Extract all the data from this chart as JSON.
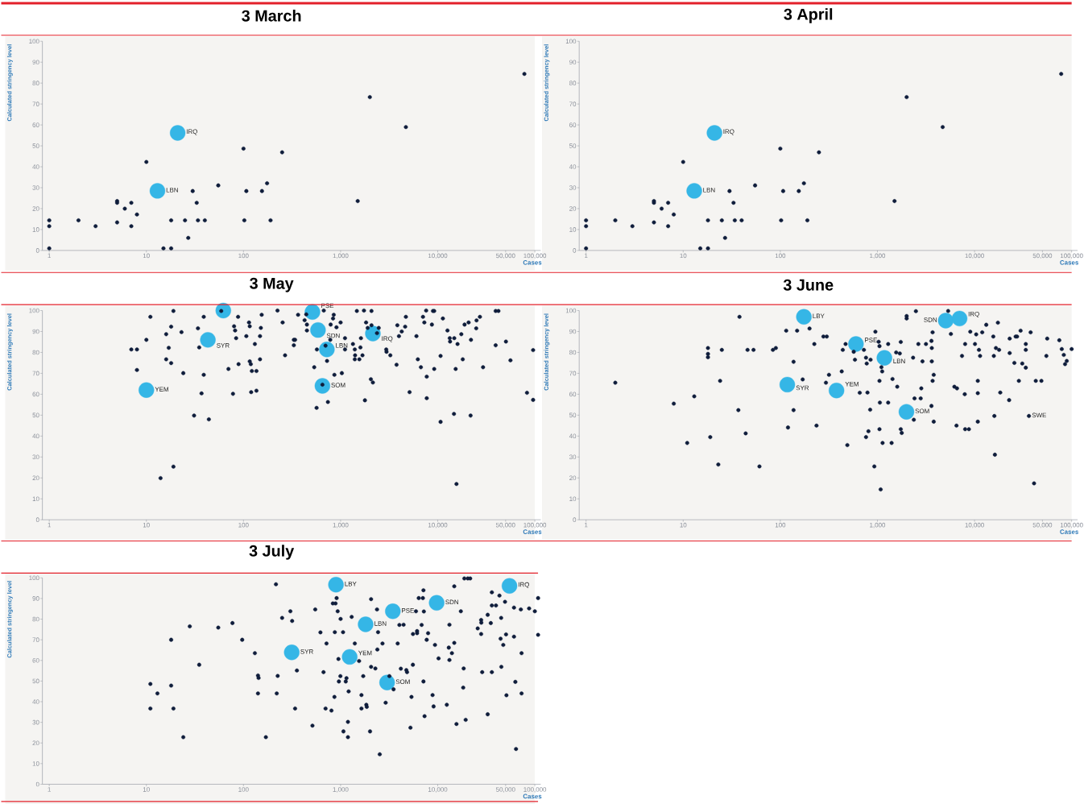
{
  "chart_data": [
    {
      "type": "scatter",
      "title": "3 March",
      "xlabel": "Cases",
      "ylabel": "Calculated stringency level",
      "log": "x",
      "marker": "circle",
      "xlim": [
        0.85,
        115000
      ],
      "ylim": [
        0,
        100
      ],
      "xticks": [
        1,
        10,
        100,
        {
          "value": 1000,
          "label": "1,000"
        },
        {
          "value": 10000,
          "label": "10,000"
        },
        {
          "value": 50000,
          "label": "50,000"
        },
        {
          "value": 100000,
          "label": "100,000"
        }
      ],
      "yticks": [
        0,
        10,
        20,
        30,
        40,
        50,
        60,
        70,
        80,
        90,
        100
      ],
      "series": [
        {
          "color": "#35b6e6",
          "x": [
            21,
            13
          ],
          "values": [
            56.2,
            28.5
          ]
        },
        {
          "color": "#0f1d3b",
          "x": [
            1,
            1,
            1,
            2,
            3,
            5,
            5,
            5,
            6,
            7,
            7,
            8,
            10,
            15,
            18,
            18,
            25,
            27,
            30,
            33,
            34,
            40,
            55,
            100,
            102,
            107,
            155,
            175,
            190,
            250,
            1500,
            2000,
            4700,
            78000
          ],
          "values": [
            14.4,
            11.6,
            1,
            14.4,
            11.6,
            23.6,
            22.8,
            13.4,
            20,
            22.8,
            11.6,
            17.2,
            42.3,
            1,
            1,
            14.4,
            14.4,
            6,
            28.4,
            22.8,
            14.4,
            14.4,
            31.1,
            48.7,
            14.4,
            28.4,
            28.4,
            32.1,
            14.4,
            46.9,
            23.6,
            73.3,
            59,
            84.4
          ]
        }
      ],
      "annotations": [
        {
          "text": "IRQ",
          "x": 21,
          "y": 56.2
        },
        {
          "text": "LBN",
          "x": 13,
          "y": 28.5
        }
      ]
    },
    {
      "type": "scatter",
      "title": "3 April",
      "xlabel": "Cases",
      "ylabel": "Calculated stringency level",
      "log": "x",
      "marker": "circle",
      "xlim": [
        0.85,
        115000
      ],
      "ylim": [
        0,
        100
      ],
      "xticks": [
        1,
        10,
        100,
        {
          "value": 1000,
          "label": "1,000"
        },
        {
          "value": 10000,
          "label": "10,000"
        },
        {
          "value": 50000,
          "label": "50,000"
        },
        {
          "value": 100000,
          "label": "100,000"
        }
      ],
      "yticks": [
        0,
        10,
        20,
        30,
        40,
        50,
        60,
        70,
        80,
        90,
        100
      ],
      "series": [
        {
          "color": "#35b6e6",
          "x": [
            21,
            13
          ],
          "values": [
            56.2,
            28.5
          ]
        },
        {
          "color": "#0f1d3b",
          "x": [
            1,
            1,
            1,
            2,
            3,
            5,
            5,
            5,
            6,
            7,
            7,
            8,
            10,
            15,
            18,
            18,
            25,
            27,
            30,
            33,
            34,
            40,
            55,
            100,
            102,
            107,
            155,
            175,
            190,
            250,
            1500,
            2000,
            4700,
            78000
          ],
          "values": [
            14.4,
            11.6,
            1,
            14.4,
            11.6,
            23.6,
            22.8,
            13.4,
            20,
            22.8,
            11.6,
            17.2,
            42.3,
            1,
            1,
            14.4,
            14.4,
            6,
            28.4,
            22.8,
            14.4,
            14.4,
            31.1,
            48.7,
            14.4,
            28.4,
            28.4,
            32.1,
            14.4,
            46.9,
            23.6,
            73.3,
            59,
            84.4
          ]
        }
      ],
      "annotations": [
        {
          "text": "IRQ",
          "x": 21,
          "y": 56.2
        },
        {
          "text": "LBN",
          "x": 13,
          "y": 28.5
        }
      ]
    },
    {
      "type": "scatter",
      "title": "3 May",
      "xlabel": "Cases",
      "ylabel": "Calculated stringency level",
      "log": "x",
      "marker": "circle",
      "xlim": [
        0.85,
        115000
      ],
      "ylim": [
        0,
        100
      ],
      "xticks": [
        1,
        10,
        100,
        {
          "value": 1000,
          "label": "1,000"
        },
        {
          "value": 10000,
          "label": "10,000"
        },
        {
          "value": 50000,
          "label": "50,000"
        },
        {
          "value": 100000,
          "label": "100,000"
        }
      ],
      "yticks": [
        0,
        10,
        20,
        30,
        40,
        50,
        60,
        70,
        80,
        90,
        100
      ],
      "series": [
        {
          "color": "#35b6e6",
          "x": [
            10,
            43,
            62,
            513,
            585,
            722,
            650,
            2150
          ],
          "values": [
            62,
            86,
            100,
            99.3,
            90.7,
            81.4,
            64,
            89
          ]
        },
        {
          "color": "#0f1d3b",
          "x": [
            7,
            8,
            8,
            10,
            11,
            14,
            16,
            16,
            17,
            18,
            18,
            19,
            19,
            23,
            24,
            31,
            34,
            35,
            37,
            39,
            39,
            44,
            59,
            70,
            78,
            80,
            82,
            84,
            88,
            89,
            107,
            114,
            116,
            116,
            119,
            120,
            122,
            131,
            136,
            136,
            148,
            148,
            151,
            154,
            224,
            253,
            268,
            330,
            330,
            340,
            365,
            426,
            443,
            450,
            450,
            535,
            566,
            570,
            671,
            650,
            700,
            725,
            740,
            783,
            790,
            836,
            850,
            863,
            907,
            1000,
            1030,
            1110,
            1110,
            1340,
            1400,
            1400,
            1410,
            1470,
            1560,
            1600,
            1620,
            1680,
            1740,
            1780,
            1830,
            1900,
            2050,
            2080,
            2080,
            2150,
            2370,
            2470,
            2950,
            2970,
            3250,
            3770,
            3840,
            3990,
            4260,
            4620,
            4700,
            5130,
            6040,
            6240,
            6710,
            7050,
            7280,
            7600,
            7710,
            7710,
            8710,
            8930,
            9200,
            9200,
            10700,
            10700,
            11300,
            12600,
            13300,
            13400,
            14700,
            14800,
            15300,
            15600,
            16000,
            17500,
            18100,
            18900,
            20800,
            21800,
            22000,
            24900,
            25100,
            27200,
            29300,
            39500,
            39500,
            42200,
            50400,
            56100,
            83000,
            96000,
            96000
          ],
          "values": [
            81.4,
            81.4,
            71.6,
            86,
            97,
            19.9,
            88.7,
            76.7,
            82.2,
            92.3,
            74.9,
            99.8,
            25.4,
            89.7,
            70.1,
            49.8,
            91.5,
            82.4,
            60.4,
            69.3,
            97,
            48,
            99.8,
            72.1,
            60.2,
            92.5,
            90.5,
            86.8,
            97,
            74.4,
            87.8,
            94.3,
            75.7,
            92.5,
            74.4,
            61,
            71.1,
            84,
            71.1,
            61.7,
            87.8,
            76.7,
            91.7,
            98,
            100,
            94.3,
            78.6,
            86,
            83.4,
            86,
            98,
            95.4,
            98.2,
            93.3,
            90.5,
            72.9,
            53.5,
            81.4,
            100,
            64.6,
            83.2,
            75.9,
            56.3,
            86,
            93.3,
            96.2,
            98,
            69.3,
            92,
            94.3,
            70.1,
            86.8,
            81.4,
            84,
            81.4,
            76.7,
            78.6,
            99.8,
            76.7,
            82.4,
            86.8,
            78.6,
            100,
            57.1,
            94.3,
            91.7,
            67.2,
            99.8,
            93,
            65.6,
            89.2,
            91.7,
            81.4,
            80.3,
            78.6,
            74.1,
            93,
            87.8,
            90,
            92.3,
            97,
            61,
            87.8,
            76.7,
            72.9,
            97,
            94.3,
            100,
            68.4,
            58.1,
            93.3,
            99.8,
            99.8,
            72.1,
            46.8,
            78.3,
            96.2,
            90.5,
            86.8,
            85.2,
            50.6,
            86.8,
            72.1,
            17.1,
            84,
            88.7,
            76.7,
            93.3,
            94.3,
            49.8,
            86,
            91.5,
            95.3,
            97,
            72.9,
            83.4,
            99.8,
            99.8,
            85.2,
            76.2,
            60.7,
            81.1,
            57.3
          ]
        }
      ],
      "annotations": [
        {
          "text": "YEM",
          "x": 10,
          "y": 62
        },
        {
          "text": "SYR",
          "x": 43,
          "y": 86
        },
        {
          "text": "PSE",
          "x": 513,
          "y": 99.3
        },
        {
          "text": "SDN",
          "x": 585,
          "y": 90.7
        },
        {
          "text": "LBN",
          "x": 722,
          "y": 81.4
        },
        {
          "text": "SOM",
          "x": 650,
          "y": 64
        },
        {
          "text": "IRQ",
          "x": 2150,
          "y": 89
        }
      ]
    },
    {
      "type": "scatter",
      "title": "3 June",
      "xlabel": "Cases",
      "ylabel": "Calculated stringency level",
      "log": "x",
      "marker": "circle",
      "xlim": [
        0.85,
        115000
      ],
      "ylim": [
        0,
        100
      ],
      "xticks": [
        1,
        10,
        100,
        {
          "value": 1000,
          "label": "1,000"
        },
        {
          "value": 10000,
          "label": "10,000"
        },
        {
          "value": 50000,
          "label": "50,000"
        },
        {
          "value": 100000,
          "label": "100,000"
        }
      ],
      "yticks": [
        0,
        10,
        20,
        30,
        40,
        50,
        60,
        70,
        80,
        90,
        100
      ],
      "series": [
        {
          "color": "#35b6e6",
          "x": [
            175,
            118,
            379,
            601,
            1180,
            1990,
            5050,
            7010
          ],
          "values": [
            97,
            64.6,
            61.8,
            84,
            77.4,
            51.6,
            95.2,
            96.2
          ]
        },
        {
          "color": "#0f1d3b",
          "x": [
            2,
            8,
            11,
            13,
            18,
            18,
            18,
            19,
            23,
            24,
            25,
            37,
            38,
            44,
            46,
            53,
            61,
            84,
            90,
            115,
            120,
            137,
            137,
            170,
            149,
            200,
            224,
            236,
            278,
            301,
            295,
            317,
            429,
            440,
            470,
            490,
            570,
            587,
            658,
            726,
            763,
            763,
            776,
            790,
            808,
            842,
            850,
            929,
            953,
            1030,
            1050,
            1050,
            1050,
            1060,
            1080,
            1100,
            1120,
            1130,
            1290,
            1290,
            1400,
            1430,
            1560,
            1600,
            1700,
            1740,
            1740,
            1780,
            2330,
            2370,
            2410,
            2490,
            2640,
            2790,
            2830,
            2910,
            3160,
            2000,
            2000,
            3600,
            3630,
            3600,
            3630,
            3700,
            3700,
            3800,
            3800,
            5350,
            5710,
            6200,
            6600,
            6520,
            7430,
            7930,
            8000,
            8000,
            9040,
            8750,
            10100,
            10400,
            10800,
            10800,
            10800,
            11100,
            11400,
            12000,
            13200,
            15600,
            15800,
            16000,
            16200,
            16600,
            17400,
            17900,
            18400,
            22700,
            23000,
            23000,
            25700,
            26500,
            27400,
            28600,
            29800,
            31000,
            33700,
            33700,
            33700,
            36300,
            37800,
            41000,
            42700,
            48800,
            56000,
            54900,
            74600,
            79100,
            83000,
            85500,
            89000,
            100000
          ],
          "values": [
            65.5,
            55.5,
            36.7,
            59,
            82.1,
            79.3,
            77.7,
            39.5,
            26.4,
            66.4,
            81.2,
            52.4,
            97,
            41.3,
            81.2,
            81.2,
            25.5,
            81.2,
            82.1,
            90.4,
            44.1,
            75.5,
            52.4,
            67.1,
            90.4,
            91.4,
            84,
            45,
            87.6,
            87.6,
            65.5,
            69.3,
            70.9,
            81.2,
            84,
            35.7,
            80.3,
            76.5,
            60.7,
            81.2,
            77.5,
            39.5,
            74.7,
            60.8,
            42.3,
            52.6,
            76.5,
            25.5,
            89.9,
            85.1,
            83,
            66.4,
            43.3,
            56,
            14.5,
            72.9,
            70.9,
            36.7,
            84,
            56,
            36.7,
            67.3,
            80,
            63.6,
            79.5,
            85,
            43.3,
            41.5,
            77.5,
            47.8,
            58,
            99.7,
            84,
            58,
            62.8,
            75.7,
            84,
            97.4,
            96.2,
            85.5,
            82.1,
            54.4,
            75.7,
            89.6,
            66.4,
            69.3,
            46.9,
            99.8,
            88.8,
            63.6,
            62.8,
            45,
            78.3,
            60,
            84,
            43.3,
            89.9,
            43.3,
            84,
            88.6,
            46.9,
            66.4,
            60.5,
            81.2,
            78.3,
            89.6,
            93.2,
            87.6,
            78.3,
            49.6,
            31.1,
            82.1,
            94.2,
            81.2,
            60.8,
            57.2,
            86.6,
            79.7,
            75,
            87.6,
            87.6,
            66.4,
            90.4,
            74.7,
            84,
            81.2,
            72.7,
            49.6,
            89.6,
            17.4,
            66.4,
            66.4,
            86.6,
            78.3,
            85.8,
            81.6,
            78.8,
            74.4,
            75.9,
            81.6
          ]
        }
      ],
      "annotations": [
        {
          "text": "LBY",
          "x": 175,
          "y": 97
        },
        {
          "text": "SYR",
          "x": 118,
          "y": 64.6
        },
        {
          "text": "YEM",
          "x": 379,
          "y": 61.8
        },
        {
          "text": "PSE",
          "x": 601,
          "y": 84
        },
        {
          "text": "LBN",
          "x": 1180,
          "y": 77.4
        },
        {
          "text": "SOM",
          "x": 1990,
          "y": 51.6
        },
        {
          "text": "SDN",
          "x": 5050,
          "y": 95.2
        },
        {
          "text": "IRQ",
          "x": 7010,
          "y": 96.2
        },
        {
          "text": "SWE",
          "x": 36300,
          "y": 49.6
        }
      ]
    },
    {
      "type": "scatter",
      "title": "3 July",
      "xlabel": "Cases",
      "ylabel": "Calculated stringency level",
      "log": "x",
      "marker": "circle",
      "xlim": [
        0.85,
        115000
      ],
      "ylim": [
        0,
        100
      ],
      "xticks": [
        1,
        10,
        100,
        {
          "value": 1000,
          "label": "1,000"
        },
        {
          "value": 10000,
          "label": "10,000"
        },
        {
          "value": 50000,
          "label": "50,000"
        },
        {
          "value": 100000,
          "label": "100,000"
        }
      ],
      "yticks": [
        0,
        10,
        20,
        30,
        40,
        50,
        60,
        70,
        80,
        90,
        100
      ],
      "series": [
        {
          "color": "#35b6e6",
          "x": [
            896,
            314,
            1240,
            1810,
            3450,
            3010,
            9750,
            54800
          ],
          "values": [
            96.7,
            63.9,
            61.7,
            77.5,
            83.8,
            49.3,
            87.9,
            96.1
          ]
        },
        {
          "color": "#0f1d3b",
          "x": [
            11,
            11,
            13,
            18,
            18,
            19,
            24,
            28,
            35,
            55,
            77,
            97,
            131,
            141,
            143,
            141,
            170,
            216,
            225,
            220,
            250,
            304,
            317,
            355,
            340,
            513,
            548,
            620,
            667,
            700,
            716,
            805,
            832,
            887,
            864,
            872,
            910,
            933,
            950,
            960,
            995,
            1000,
            1070,
            1060,
            1130,
            1150,
            1190,
            1190,
            1210,
            1300,
            1400,
            1550,
            1640,
            1640,
            1710,
            1840,
            1860,
            2060,
            2060,
            2010,
            2280,
            2370,
            2430,
            2390,
            2530,
            2700,
            2910,
            3180,
            3510,
            4030,
            4450,
            3870,
            4170,
            4750,
            4830,
            5370,
            5240,
            5550,
            5560,
            5970,
            6130,
            6130,
            6380,
            7030,
            7130,
            7200,
            6830,
            7130,
            7320,
            7700,
            7960,
            8850,
            9070,
            9370,
            10200,
            12400,
            13000,
            13200,
            13200,
            14000,
            14800,
            14800,
            15600,
            17300,
            18300,
            18500,
            19400,
            18800,
            20400,
            21600,
            25800,
            28000,
            28100,
            28000,
            28700,
            32700,
            32700,
            35200,
            36100,
            36100,
            36100,
            39800,
            43200,
            45000,
            44400,
            45200,
            47300,
            49300,
            50500,
            51000,
            61000,
            61000,
            63000,
            64000,
            71800,
            73000,
            73000,
            87300,
            100000,
            108000,
            108000
          ],
          "values": [
            48.6,
            36.7,
            44,
            47.8,
            70,
            36.7,
            22.8,
            76.5,
            57.9,
            75.9,
            78.1,
            70,
            63.5,
            52.7,
            51.5,
            44,
            22.8,
            96.9,
            52.5,
            44,
            80.6,
            83.8,
            79.1,
            55.1,
            36.7,
            28.4,
            84.7,
            73.6,
            54.3,
            36.7,
            68.2,
            35.7,
            87.6,
            87.6,
            42.3,
            73.7,
            90.2,
            83.8,
            60.7,
            49.8,
            52.4,
            80.1,
            25.6,
            73.7,
            49.8,
            51.4,
            30.2,
            22.8,
            45,
            81.1,
            68.2,
            59.7,
            43.2,
            36.7,
            52.4,
            38.5,
            37.5,
            89.7,
            56.9,
            25.6,
            56.1,
            84.7,
            73.7,
            65.3,
            14.5,
            68.2,
            39.5,
            52.4,
            46,
            77.2,
            77.3,
            68.2,
            56,
            55.3,
            54.3,
            42.3,
            27.4,
            57.9,
            72.8,
            83.8,
            74.2,
            73.2,
            90.2,
            90.2,
            94,
            83.7,
            77.2,
            49.8,
            33,
            70,
            73.2,
            43.2,
            37.7,
            67.5,
            61,
            38.5,
            66.2,
            77.3,
            60.2,
            63.5,
            68.5,
            95.9,
            29.2,
            83.8,
            46.8,
            56.1,
            31.2,
            99.7,
            99.7,
            99.7,
            75.5,
            79.6,
            78.3,
            72.8,
            54.3,
            33.9,
            82.1,
            78.1,
            93,
            86.6,
            54.3,
            86.6,
            91.4,
            80.6,
            70.5,
            56.9,
            67.5,
            88.4,
            72.6,
            43.1,
            85.6,
            71.5,
            49.6,
            17.1,
            84.7,
            63.5,
            44,
            85.2,
            83.8,
            90.2,
            72.4
          ]
        }
      ],
      "annotations": [
        {
          "text": "LBY",
          "x": 896,
          "y": 96.7
        },
        {
          "text": "SYR",
          "x": 314,
          "y": 63.9
        },
        {
          "text": "YEM",
          "x": 1240,
          "y": 61.7
        },
        {
          "text": "LBN",
          "x": 1810,
          "y": 77.5
        },
        {
          "text": "PSE",
          "x": 3450,
          "y": 83.8
        },
        {
          "text": "SOM",
          "x": 3010,
          "y": 49.3
        },
        {
          "text": "SDN",
          "x": 9750,
          "y": 87.9
        },
        {
          "text": "IRQ",
          "x": 54800,
          "y": 96.1
        }
      ]
    }
  ]
}
